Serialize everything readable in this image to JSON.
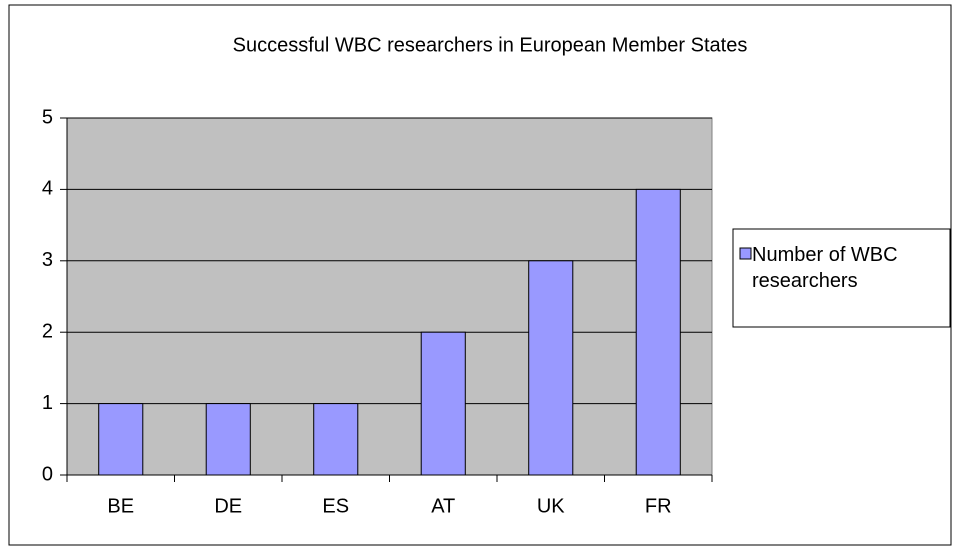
{
  "chart_data": {
    "type": "bar",
    "title": "Successful WBC researchers in European Member States",
    "categories": [
      "BE",
      "DE",
      "ES",
      "AT",
      "UK",
      "FR"
    ],
    "series": [
      {
        "name": "Number of WBC researchers",
        "color": "#9999ff",
        "values": [
          1,
          1,
          1,
          2,
          3,
          4
        ]
      }
    ],
    "ylim": [
      0,
      5
    ],
    "yticks": [
      0,
      1,
      2,
      3,
      4,
      5
    ],
    "grid": true,
    "legend": "right"
  }
}
